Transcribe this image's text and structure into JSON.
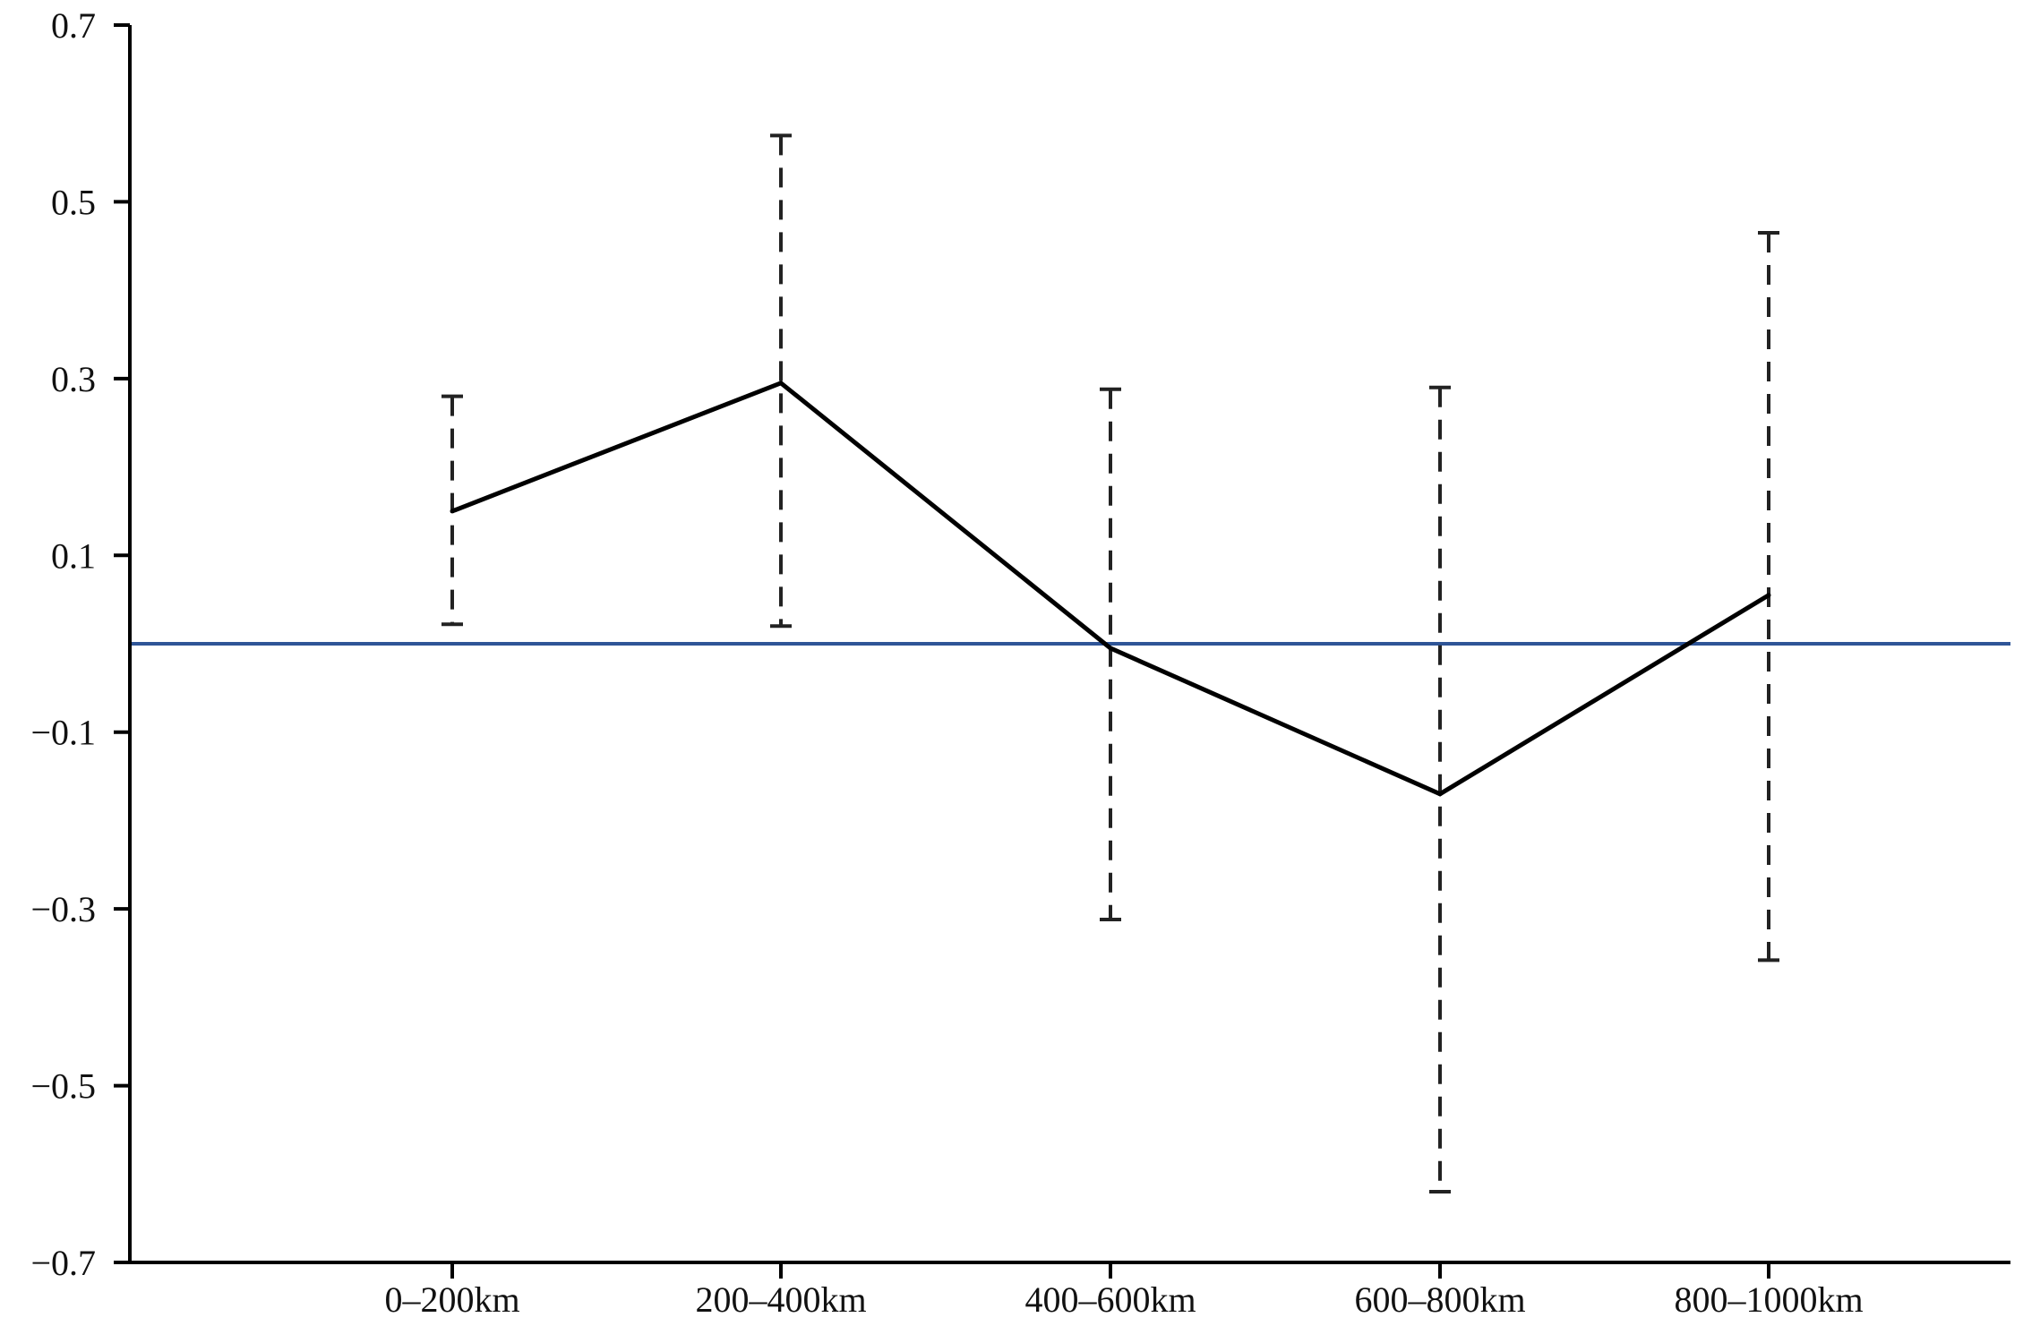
{
  "chart_data": {
    "type": "line",
    "title": "",
    "xlabel": "",
    "ylabel": "",
    "categories": [
      "0–200km",
      "200–400km",
      "400–600km",
      "600–800km",
      "800–1000km"
    ],
    "series": [
      {
        "values": [
          0.15,
          0.295,
          -0.005,
          -0.17,
          0.055
        ],
        "error_low": [
          0.022,
          0.02,
          -0.312,
          -0.62,
          -0.358
        ],
        "error_high": [
          0.28,
          0.575,
          0.288,
          0.29,
          0.465
        ],
        "line_color": "#000000",
        "error_bar_style": "dashed"
      }
    ],
    "reference_line": {
      "y": 0,
      "color": "#2f5597"
    },
    "ylim": [
      -0.7,
      0.7
    ],
    "yticks": [
      0.7,
      0.5,
      0.3,
      0.1,
      -0.1,
      -0.3,
      -0.5,
      -0.7
    ],
    "ytick_labels": [
      "0.7",
      "0.5",
      "0.3",
      "0.1",
      "−0.1",
      "−0.3",
      "−0.5",
      "−0.7"
    ],
    "grid": false,
    "legend": "none"
  }
}
